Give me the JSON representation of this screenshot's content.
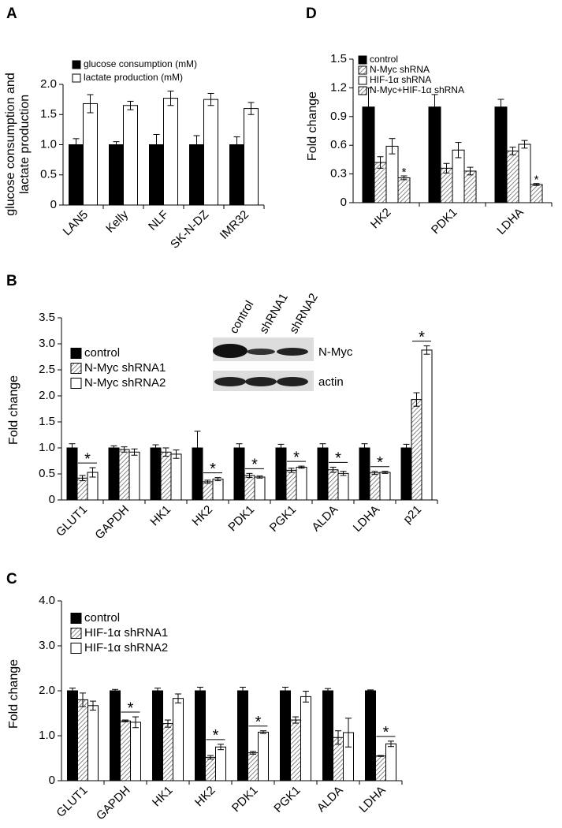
{
  "chart_data": [
    {
      "type": "bar",
      "panel": "A",
      "ylabel": [
        "glucose consumption and",
        "lactate production"
      ],
      "categories": [
        "LAN5",
        "Kelly",
        "NLF",
        "SK-N-DZ",
        "IMR32"
      ],
      "series": [
        {
          "name": "glucose consumption (mM)",
          "color": "#000000",
          "values": [
            1,
            1,
            1,
            1,
            1
          ],
          "errors": [
            0.1,
            0.05,
            0.17,
            0.15,
            0.13
          ]
        },
        {
          "name": "lactate production (mM)",
          "color": "#ffffff",
          "values": [
            1.68,
            1.65,
            1.77,
            1.75,
            1.6
          ],
          "errors": [
            0.15,
            0.07,
            0.12,
            0.1,
            0.1
          ]
        }
      ],
      "ylim": [
        0,
        2
      ],
      "yticks": [
        0,
        0.5,
        {
          "value": 1,
          "label": "1.0"
        },
        1.5,
        {
          "value": 2,
          "label": "2.0"
        }
      ],
      "annotations": []
    },
    {
      "type": "bar",
      "panel": "B",
      "ylabel": [
        "Fold change"
      ],
      "categories": [
        "GLUT1",
        "GAPDH",
        "HK1",
        "HK2",
        "PDK1",
        "PGK1",
        "ALDA",
        "LDHA",
        "p21"
      ],
      "series": [
        {
          "name": "control",
          "color": "#000000",
          "values": [
            1,
            1,
            1,
            1,
            1,
            1,
            1,
            1,
            1
          ],
          "errors": [
            0.08,
            0.04,
            0.06,
            0.32,
            0.08,
            0.07,
            0.08,
            0.08,
            0.07
          ]
        },
        {
          "name": "N-Myc shRNA1",
          "color": "#ffffff",
          "hatch": true,
          "values": [
            0.42,
            0.97,
            0.92,
            0.35,
            0.47,
            0.57,
            0.58,
            0.52,
            1.93
          ],
          "errors": [
            0.05,
            0.05,
            0.08,
            0.03,
            0.04,
            0.04,
            0.05,
            0.03,
            0.13
          ]
        },
        {
          "name": "N-Myc shRNA2",
          "color": "#ffffff",
          "values": [
            0.53,
            0.92,
            0.88,
            0.4,
            0.44,
            0.63,
            0.51,
            0.53,
            2.88
          ],
          "errors": [
            0.09,
            0.06,
            0.08,
            0.03,
            0.02,
            0.02,
            0.04,
            0.02,
            0.08
          ]
        }
      ],
      "ylim": [
        0,
        3.5
      ],
      "yticks": [
        0,
        0.5,
        {
          "value": 1,
          "label": "1.0"
        },
        1.5,
        {
          "value": 2,
          "label": "2.0"
        },
        2.5,
        {
          "value": 3,
          "label": "3.0"
        },
        3.5
      ],
      "annotations": [
        "*",
        "*",
        "*",
        "*",
        "*",
        "*",
        "*"
      ],
      "inset": {
        "lanes": [
          "control",
          "shRNA1",
          "shRNA2"
        ],
        "bands": [
          "N-Myc",
          "actin"
        ]
      }
    },
    {
      "type": "bar",
      "panel": "C",
      "ylabel": [
        "Fold change"
      ],
      "categories": [
        "GLUT1",
        "GAPDH",
        "HK1",
        "HK2",
        "PDK1",
        "PGK1",
        "ALDA",
        "LDHA"
      ],
      "series": [
        {
          "name": "control",
          "color": "#000000",
          "values": [
            2,
            2,
            2,
            2,
            2,
            2,
            2,
            2
          ],
          "errors": [
            0.06,
            0.03,
            0.06,
            0.08,
            0.08,
            0.08,
            0.05,
            0.02
          ]
        },
        {
          "name": "HIF-1α shRNA1",
          "color": "#ffffff",
          "hatch": true,
          "values": [
            1.8,
            1.33,
            1.27,
            0.52,
            0.62,
            1.35,
            0.96,
            0.55
          ],
          "errors": [
            0.15,
            0.02,
            0.08,
            0.04,
            0.03,
            0.07,
            0.15,
            0.01
          ]
        },
        {
          "name": "HIF-1α shRNA2",
          "color": "#ffffff",
          "values": [
            1.67,
            1.3,
            1.83,
            0.75,
            1.08,
            1.87,
            1.07,
            0.82
          ],
          "errors": [
            0.1,
            0.12,
            0.1,
            0.06,
            0.03,
            0.12,
            0.32,
            0.06
          ]
        }
      ],
      "ylim": [
        0,
        4
      ],
      "yticks": [
        0,
        {
          "value": 1,
          "label": "1.0"
        },
        {
          "value": 2,
          "label": "2.0"
        },
        {
          "value": 3,
          "label": "3.0"
        },
        {
          "value": 4,
          "label": "4.0"
        }
      ],
      "annotations": [
        "*",
        "*",
        "*",
        "*"
      ]
    },
    {
      "type": "bar",
      "panel": "D",
      "ylabel": [
        "Fold change"
      ],
      "categories": [
        "HK2",
        "PDK1",
        "LDHA"
      ],
      "series": [
        {
          "name": "control",
          "color": "#000000",
          "values": [
            1,
            1,
            1
          ],
          "errors": [
            0.2,
            0.13,
            0.08
          ]
        },
        {
          "name": "N-Myc shRNA",
          "color": "#ffffff",
          "hatch": true,
          "values": [
            0.42,
            0.36,
            0.54
          ],
          "errors": [
            0.06,
            0.05,
            0.04
          ]
        },
        {
          "name": "HIF-1α shRNA",
          "color": "#ffffff",
          "values": [
            0.59,
            0.55,
            0.61
          ],
          "errors": [
            0.08,
            0.08,
            0.04
          ]
        },
        {
          "name": "N-Myc+HIF-1α shRNA",
          "color": "#ffffff",
          "hatch": true,
          "values": [
            0.26,
            0.33,
            0.19
          ],
          "errors": [
            0.02,
            0.04,
            0.01
          ]
        }
      ],
      "ylim": [
        0,
        1.5
      ],
      "yticks": [
        0,
        0.3,
        0.6,
        0.9,
        1.2,
        1.5
      ],
      "annotations": [
        "*",
        "*"
      ]
    }
  ]
}
